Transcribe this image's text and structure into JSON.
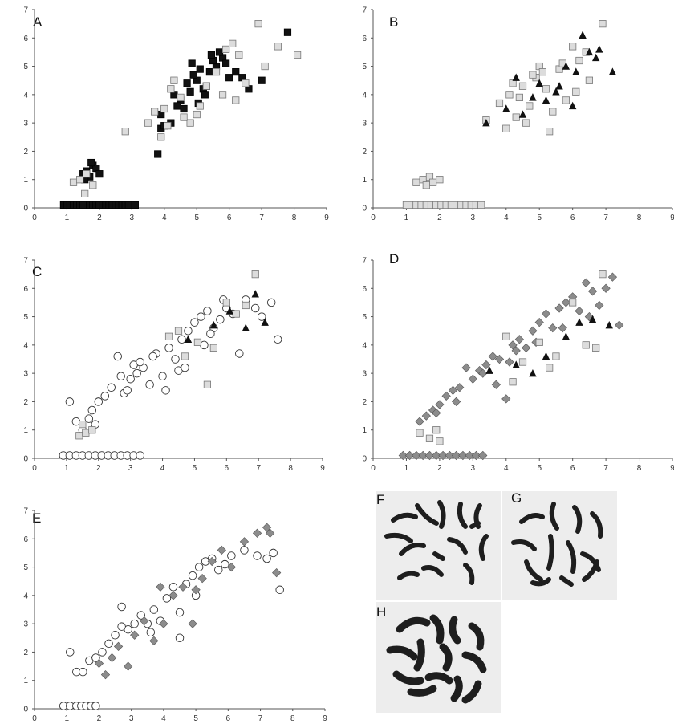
{
  "panels": [
    {
      "letter": "A"
    },
    {
      "letter": "B"
    },
    {
      "letter": "C"
    },
    {
      "letter": "D"
    },
    {
      "letter": "E"
    }
  ],
  "micrographs": [
    {
      "letter": "F"
    },
    {
      "letter": "G"
    },
    {
      "letter": "H"
    }
  ],
  "colors": {
    "black_marker": "#111111",
    "light_gray_square": "#dcdcdc",
    "square_edge": "#777777",
    "diamond_gray": "#8c8c8c",
    "circle_fill": "#ffffff",
    "circle_edge": "#333333",
    "micrograph_background": "#ededed",
    "chromosome": "#1e1e1e"
  },
  "chart_data": [
    {
      "panel": "A",
      "type": "scatter",
      "xlim": [
        0,
        9
      ],
      "ylim": [
        0,
        7
      ],
      "xticks": [
        0,
        1,
        2,
        3,
        4,
        5,
        6,
        7,
        8,
        9
      ],
      "yticks": [
        0,
        1,
        2,
        3,
        4,
        5,
        6,
        7
      ],
      "grid": false,
      "legend": "none",
      "series": [
        {
          "marker": "square",
          "color": "#111111",
          "x": [
            1.5,
            1.6,
            1.7,
            1.8,
            1.9,
            2.0,
            1.55,
            1.75,
            3.8,
            3.9,
            4.2,
            4.5,
            4.8,
            5.0,
            5.2,
            5.4,
            5.6,
            5.8,
            6.0,
            4.6,
            5.1,
            5.5,
            4.3,
            4.9,
            5.3,
            5.7,
            6.2,
            6.6,
            7.0,
            7.8,
            3.9,
            4.0,
            4.4,
            4.7,
            5.9,
            6.4,
            5.25,
            5.45,
            4.85,
            5.05
          ],
          "y": [
            1.2,
            1.3,
            1.1,
            1.5,
            1.4,
            1.2,
            1.0,
            1.6,
            1.9,
            2.8,
            3.0,
            3.8,
            4.1,
            4.5,
            4.2,
            4.8,
            5.0,
            5.3,
            4.6,
            3.5,
            4.9,
            5.2,
            4.0,
            4.7,
            4.3,
            5.5,
            4.8,
            4.2,
            4.5,
            6.2,
            3.3,
            2.9,
            3.6,
            4.4,
            5.1,
            4.6,
            4.0,
            5.4,
            5.1,
            3.7
          ]
        },
        {
          "marker": "square",
          "color": "#dcdcdc",
          "x": [
            1.2,
            1.4,
            1.6,
            1.8,
            1.55,
            2.8,
            3.5,
            3.7,
            4.0,
            4.2,
            4.5,
            4.8,
            5.0,
            5.3,
            5.6,
            5.9,
            6.1,
            6.3,
            6.5,
            6.9,
            7.1,
            7.5,
            8.1,
            4.3,
            4.6,
            5.1,
            5.8,
            6.2,
            3.9,
            4.1
          ],
          "y": [
            0.9,
            1.0,
            1.2,
            0.8,
            0.5,
            2.7,
            3.0,
            3.4,
            3.5,
            4.2,
            3.9,
            3.0,
            3.3,
            4.3,
            4.8,
            5.6,
            5.8,
            5.4,
            4.4,
            6.5,
            5.0,
            5.7,
            5.4,
            4.5,
            3.2,
            3.6,
            4.0,
            3.8,
            2.5,
            2.9
          ]
        }
      ],
      "baseline_series": {
        "marker": "square",
        "color": "#111111",
        "y": 0.1,
        "x": [
          0.9,
          1.0,
          1.1,
          1.2,
          1.3,
          1.4,
          1.5,
          1.6,
          1.7,
          1.8,
          1.9,
          2.0,
          2.1,
          2.2,
          2.3,
          2.4,
          2.5,
          2.6,
          2.7,
          2.8,
          2.9,
          3.1
        ]
      }
    },
    {
      "panel": "B",
      "type": "scatter",
      "xlim": [
        0,
        9
      ],
      "ylim": [
        0,
        7
      ],
      "xticks": [
        0,
        1,
        2,
        3,
        4,
        5,
        6,
        7,
        8,
        9
      ],
      "yticks": [
        0,
        1,
        2,
        3,
        4,
        5,
        6,
        7
      ],
      "grid": false,
      "legend": "none",
      "series": [
        {
          "marker": "square",
          "color": "#dcdcdc",
          "x": [
            1.3,
            1.5,
            1.7,
            1.8,
            2.0,
            1.6,
            3.4,
            3.8,
            4.0,
            4.1,
            4.3,
            4.5,
            4.7,
            4.9,
            5.0,
            5.2,
            5.4,
            5.6,
            5.8,
            6.0,
            6.2,
            6.5,
            6.9,
            4.2,
            4.6,
            5.1,
            5.3,
            5.7,
            6.1,
            6.4,
            4.4,
            4.8
          ],
          "y": [
            0.9,
            1.0,
            1.1,
            0.9,
            1.0,
            0.8,
            3.1,
            3.7,
            2.8,
            4.0,
            3.2,
            4.3,
            3.6,
            4.6,
            5.0,
            4.2,
            3.4,
            4.9,
            3.8,
            5.7,
            5.2,
            4.5,
            6.5,
            4.4,
            3.0,
            4.8,
            2.7,
            5.1,
            4.1,
            5.5,
            3.9,
            4.7
          ]
        },
        {
          "marker": "triangle",
          "color": "#111111",
          "x": [
            3.4,
            4.0,
            4.5,
            4.8,
            5.0,
            5.2,
            5.5,
            5.8,
            6.1,
            6.3,
            6.5,
            6.7,
            6.8,
            7.2,
            4.3,
            5.6,
            6.0
          ],
          "y": [
            3.0,
            3.5,
            3.3,
            3.9,
            4.4,
            3.8,
            4.1,
            5.0,
            4.8,
            6.1,
            5.5,
            5.3,
            5.6,
            4.8,
            4.6,
            4.3,
            3.6
          ]
        }
      ],
      "baseline_series": {
        "marker": "square",
        "color": "#dcdcdc",
        "y": 0.1,
        "x": [
          1.0,
          1.15,
          1.3,
          1.45,
          1.6,
          1.75,
          1.9,
          2.05,
          2.2,
          2.35,
          2.5,
          2.65,
          2.8,
          2.95,
          3.1,
          3.25
        ]
      }
    },
    {
      "panel": "C",
      "type": "scatter",
      "xlim": [
        0,
        9
      ],
      "ylim": [
        0,
        7
      ],
      "xticks": [
        0,
        1,
        2,
        3,
        4,
        5,
        6,
        7,
        8,
        9
      ],
      "yticks": [
        0,
        1,
        2,
        3,
        4,
        5,
        6,
        7
      ],
      "grid": false,
      "legend": "none",
      "series": [
        {
          "marker": "circle",
          "color": "#ffffff",
          "x": [
            1.1,
            1.3,
            1.5,
            1.7,
            1.8,
            2.0,
            2.2,
            2.4,
            2.6,
            2.8,
            3.0,
            3.2,
            3.4,
            3.6,
            3.8,
            4.0,
            4.2,
            4.4,
            4.6,
            4.8,
            5.0,
            5.2,
            5.4,
            5.6,
            5.8,
            6.0,
            6.2,
            6.6,
            6.9,
            7.1,
            7.4,
            7.6,
            2.7,
            1.9,
            3.1,
            4.5,
            5.3,
            5.9,
            3.3,
            4.1,
            4.7,
            5.5,
            2.9,
            3.7,
            6.4
          ],
          "y": [
            2.0,
            1.3,
            1.0,
            1.4,
            1.7,
            2.0,
            2.2,
            2.5,
            3.6,
            2.3,
            2.8,
            3.0,
            3.2,
            2.6,
            3.7,
            2.9,
            3.9,
            3.5,
            4.2,
            4.5,
            4.8,
            5.0,
            5.2,
            4.6,
            4.9,
            5.3,
            5.1,
            5.6,
            5.3,
            5.0,
            5.5,
            4.2,
            2.9,
            1.2,
            3.3,
            3.1,
            4.0,
            5.6,
            3.4,
            2.4,
            3.2,
            4.4,
            2.4,
            3.6,
            3.7
          ]
        },
        {
          "marker": "square",
          "color": "#dcdcdc",
          "x": [
            1.4,
            1.6,
            1.8,
            1.5,
            4.2,
            4.7,
            5.1,
            5.6,
            6.0,
            6.3,
            6.6,
            6.9,
            5.4,
            4.5
          ],
          "y": [
            0.8,
            0.9,
            1.0,
            1.2,
            4.3,
            3.6,
            4.1,
            3.9,
            5.5,
            5.1,
            5.4,
            6.5,
            2.6,
            4.5
          ]
        },
        {
          "marker": "triangle",
          "color": "#111111",
          "x": [
            5.6,
            6.1,
            6.6,
            6.9,
            7.2,
            4.8
          ],
          "y": [
            4.7,
            5.2,
            4.6,
            5.8,
            4.8,
            4.2
          ]
        }
      ],
      "baseline_series": {
        "marker": "circle",
        "color": "#ffffff",
        "y": 0.1,
        "x": [
          0.9,
          1.1,
          1.3,
          1.5,
          1.7,
          1.9,
          2.1,
          2.3,
          2.5,
          2.7,
          2.9,
          3.1,
          3.3
        ]
      }
    },
    {
      "panel": "D",
      "type": "scatter",
      "xlim": [
        0,
        9
      ],
      "ylim": [
        0,
        7
      ],
      "xticks": [
        0,
        1,
        2,
        3,
        4,
        5,
        6,
        7,
        8,
        9
      ],
      "yticks": [
        0,
        1,
        2,
        3,
        4,
        5,
        6,
        7
      ],
      "grid": false,
      "legend": "none",
      "series": [
        {
          "marker": "diamond",
          "color": "#8c8c8c",
          "x": [
            1.4,
            1.6,
            1.8,
            2.0,
            2.2,
            2.4,
            2.6,
            2.8,
            3.0,
            3.2,
            3.4,
            3.6,
            3.8,
            4.0,
            4.2,
            4.4,
            4.6,
            4.8,
            5.0,
            5.2,
            5.4,
            5.6,
            5.8,
            6.0,
            6.2,
            6.4,
            6.6,
            6.8,
            7.0,
            7.2,
            7.4,
            2.5,
            3.3,
            4.1,
            4.9,
            5.7,
            6.5,
            4.3,
            1.9,
            3.7
          ],
          "y": [
            1.3,
            1.5,
            1.7,
            1.9,
            2.2,
            2.4,
            2.5,
            3.2,
            2.8,
            3.1,
            3.3,
            3.6,
            3.5,
            2.1,
            4.0,
            4.2,
            3.9,
            4.5,
            4.8,
            5.1,
            4.6,
            5.3,
            5.5,
            5.7,
            5.2,
            6.2,
            5.9,
            5.4,
            6.0,
            6.4,
            4.7,
            2.0,
            3.0,
            3.4,
            4.1,
            4.6,
            5.0,
            3.8,
            1.6,
            2.6
          ]
        },
        {
          "marker": "square",
          "color": "#dcdcdc",
          "x": [
            1.4,
            1.7,
            1.9,
            2.0,
            4.0,
            4.5,
            5.0,
            5.5,
            6.0,
            6.4,
            6.9,
            4.2,
            5.3,
            6.7
          ],
          "y": [
            0.9,
            0.7,
            1.0,
            0.6,
            4.3,
            3.4,
            4.1,
            3.6,
            5.5,
            4.0,
            6.5,
            2.7,
            3.2,
            3.9
          ]
        },
        {
          "marker": "triangle",
          "color": "#111111",
          "x": [
            3.5,
            4.3,
            5.2,
            5.8,
            6.2,
            6.6,
            7.1,
            4.8
          ],
          "y": [
            3.1,
            3.3,
            3.6,
            4.3,
            4.8,
            4.9,
            4.7,
            3.0
          ]
        }
      ],
      "baseline_series": {
        "marker": "diamond",
        "color": "#8c8c8c",
        "y": 0.1,
        "x": [
          0.9,
          1.1,
          1.3,
          1.5,
          1.7,
          1.9,
          2.1,
          2.3,
          2.5,
          2.7,
          2.9,
          3.1,
          3.3
        ]
      }
    },
    {
      "panel": "E",
      "type": "scatter",
      "xlim": [
        0,
        9
      ],
      "ylim": [
        0,
        7
      ],
      "xticks": [
        0,
        1,
        2,
        3,
        4,
        5,
        6,
        7,
        8,
        9
      ],
      "yticks": [
        0,
        1,
        2,
        3,
        4,
        5,
        6,
        7
      ],
      "grid": false,
      "legend": "none",
      "series": [
        {
          "marker": "circle",
          "color": "#ffffff",
          "x": [
            1.1,
            1.3,
            1.5,
            1.7,
            1.9,
            2.1,
            2.3,
            2.5,
            2.7,
            2.9,
            3.1,
            3.3,
            3.5,
            3.7,
            3.9,
            4.1,
            4.3,
            4.5,
            4.7,
            4.9,
            5.1,
            5.3,
            5.5,
            5.7,
            5.9,
            6.1,
            6.5,
            6.9,
            7.2,
            7.4,
            7.6,
            2.7,
            4.5,
            3.6,
            5.0
          ],
          "y": [
            2.0,
            1.3,
            1.3,
            1.7,
            1.8,
            2.0,
            2.3,
            2.6,
            3.6,
            2.8,
            3.0,
            3.3,
            3.0,
            3.5,
            3.1,
            3.9,
            4.3,
            2.5,
            4.4,
            4.7,
            5.0,
            5.2,
            5.3,
            4.9,
            5.1,
            5.4,
            5.6,
            5.4,
            5.3,
            5.5,
            4.2,
            2.9,
            3.4,
            2.7,
            4.0
          ]
        },
        {
          "marker": "diamond",
          "color": "#8c8c8c",
          "x": [
            2.0,
            2.2,
            2.4,
            2.6,
            2.9,
            3.1,
            3.4,
            3.7,
            4.0,
            4.3,
            4.6,
            4.9,
            5.2,
            5.5,
            5.8,
            6.1,
            6.5,
            6.9,
            7.2,
            7.3,
            7.5,
            5.0,
            3.9
          ],
          "y": [
            1.6,
            1.2,
            1.8,
            2.2,
            1.5,
            2.6,
            3.1,
            2.4,
            3.0,
            4.0,
            4.3,
            3.0,
            4.6,
            5.2,
            5.6,
            5.0,
            5.9,
            6.2,
            6.4,
            6.2,
            4.8,
            4.2,
            4.3
          ]
        }
      ],
      "baseline_series": {
        "marker": "circle",
        "color": "#ffffff",
        "y": 0.1,
        "x": [
          0.9,
          1.1,
          1.3,
          1.45,
          1.6,
          1.75,
          1.9
        ]
      }
    }
  ]
}
